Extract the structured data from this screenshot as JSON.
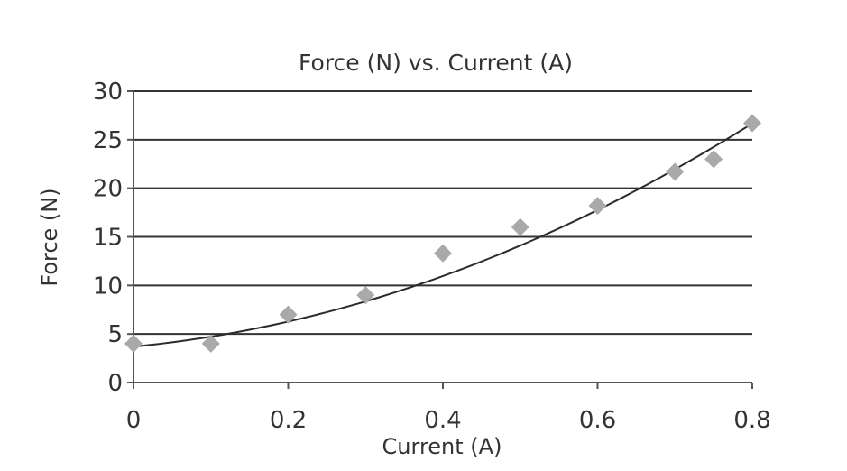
{
  "chart_data": {
    "type": "scatter",
    "title": "Force (N) vs. Current (A)",
    "xlabel": "Current (A)",
    "ylabel": "Force (N)",
    "xlim": [
      0,
      0.8
    ],
    "ylim": [
      0,
      30
    ],
    "x_ticks": [
      0,
      0.2,
      0.4,
      0.6,
      0.8
    ],
    "x_tick_labels": [
      "0",
      "0.2",
      "0.4",
      "0.6",
      "0.8"
    ],
    "y_ticks": [
      0,
      5,
      10,
      15,
      20,
      25,
      30
    ],
    "y_tick_labels": [
      "0",
      "5",
      "10",
      "15",
      "20",
      "25",
      "30"
    ],
    "grid": "horizontal",
    "series": [
      {
        "marker": "diamond",
        "color": "#a9a9a9",
        "x": [
          0,
          0.1,
          0.2,
          0.3,
          0.4,
          0.5,
          0.6,
          0.7,
          0.75,
          0.8
        ],
        "y": [
          4,
          4,
          7,
          9,
          13.3,
          16,
          18.2,
          21.7,
          23,
          26.7
        ]
      }
    ],
    "trendline": {
      "type": "polynomial",
      "color": "#2b2b2b",
      "coefficients": [
        3.7,
        7.6,
        26.4
      ]
    }
  }
}
